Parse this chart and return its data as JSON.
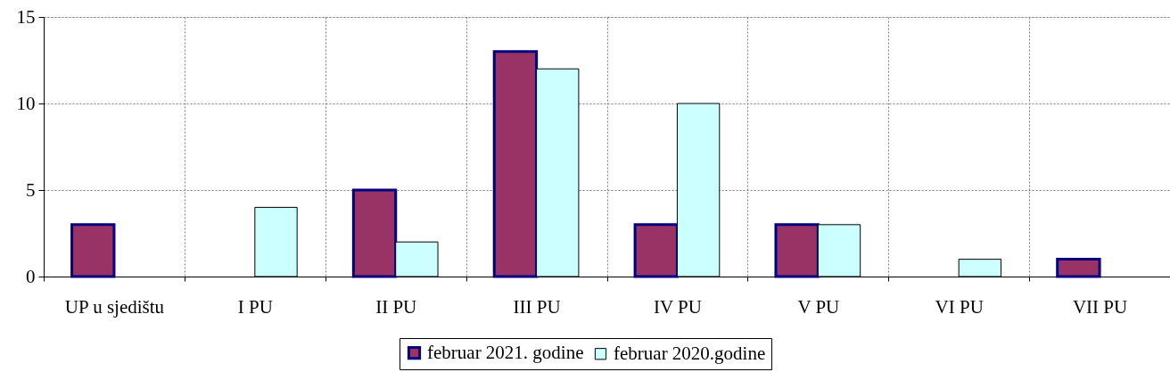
{
  "chart_data": {
    "type": "bar",
    "categories": [
      "UP u sjedištu",
      "I PU",
      "II PU",
      "III PU",
      "IV PU",
      "V PU",
      "VI PU",
      "VII PU"
    ],
    "series": [
      {
        "name": "februar 2021. godine",
        "color": "#993366",
        "values": [
          3,
          null,
          5,
          13,
          3,
          3,
          null,
          1
        ]
      },
      {
        "name": "februar 2020.godine",
        "color": "#ccffff",
        "values": [
          null,
          4,
          2,
          12,
          10,
          3,
          1,
          null
        ]
      }
    ],
    "ylim": [
      0,
      15
    ],
    "yticks": [
      0,
      5,
      10,
      15
    ],
    "grid": true,
    "legend": "bottom"
  }
}
